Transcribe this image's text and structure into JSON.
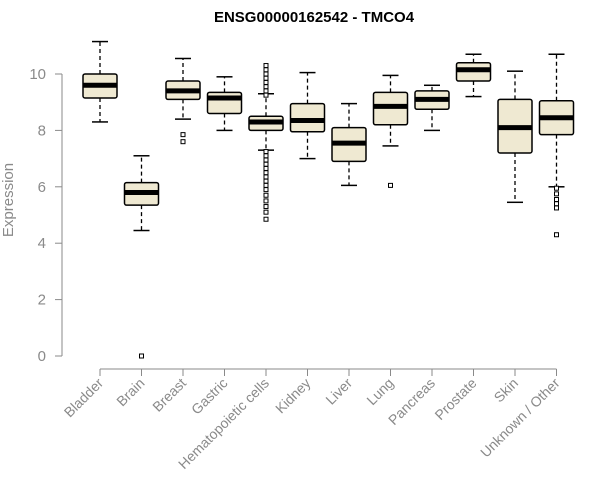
{
  "chart_data": {
    "type": "boxplot",
    "title": "ENSG00000162542 - TMCO4",
    "xlabel": "",
    "ylabel": "Expression",
    "ylim": [
      0,
      11
    ],
    "yticks": [
      0,
      2,
      4,
      6,
      8,
      10
    ],
    "grid": false,
    "box_fill": "#efe9d2",
    "box_stroke": "#000000",
    "categories": [
      "Bladder",
      "Brain",
      "Breast",
      "Gastric",
      "Hematopoietic cells",
      "Kidney",
      "Liver",
      "Lung",
      "Pancreas",
      "Prostate",
      "Skin",
      "Unknown / Other"
    ],
    "boxes": [
      {
        "category": "Bladder",
        "whisker_low": 8.3,
        "q1": 9.15,
        "median": 9.6,
        "q3": 10.0,
        "whisker_high": 11.15,
        "outliers": []
      },
      {
        "category": "Brain",
        "whisker_low": 4.45,
        "q1": 5.35,
        "median": 5.8,
        "q3": 6.15,
        "whisker_high": 7.1,
        "outliers": [
          0.0
        ]
      },
      {
        "category": "Breast",
        "whisker_low": 8.4,
        "q1": 9.1,
        "median": 9.4,
        "q3": 9.75,
        "whisker_high": 10.55,
        "outliers": [
          7.85,
          7.6
        ]
      },
      {
        "category": "Gastric",
        "whisker_low": 8.0,
        "q1": 8.6,
        "median": 9.15,
        "q3": 9.35,
        "whisker_high": 9.9,
        "outliers": []
      },
      {
        "category": "Hematopoietic cells",
        "whisker_low": 7.3,
        "q1": 8.0,
        "median": 8.3,
        "q3": 8.5,
        "whisker_high": 9.3,
        "outliers": [
          10.3,
          10.15,
          10.0,
          9.85,
          9.7,
          9.55,
          9.4,
          9.25,
          7.25,
          7.1,
          6.95,
          6.8,
          6.65,
          6.5,
          6.35,
          6.2,
          6.05,
          5.9,
          5.7,
          5.5,
          5.3,
          5.1,
          4.85
        ]
      },
      {
        "category": "Kidney",
        "whisker_low": 7.0,
        "q1": 7.95,
        "median": 8.35,
        "q3": 8.95,
        "whisker_high": 10.05,
        "outliers": []
      },
      {
        "category": "Liver",
        "whisker_low": 6.05,
        "q1": 6.9,
        "median": 7.55,
        "q3": 8.1,
        "whisker_high": 8.95,
        "outliers": []
      },
      {
        "category": "Lung",
        "whisker_low": 7.45,
        "q1": 8.2,
        "median": 8.85,
        "q3": 9.35,
        "whisker_high": 9.95,
        "outliers": [
          6.05
        ]
      },
      {
        "category": "Pancreas",
        "whisker_low": 8.0,
        "q1": 8.75,
        "median": 9.1,
        "q3": 9.4,
        "whisker_high": 9.6,
        "outliers": []
      },
      {
        "category": "Prostate",
        "whisker_low": 9.2,
        "q1": 9.75,
        "median": 10.15,
        "q3": 10.4,
        "whisker_high": 10.7,
        "outliers": []
      },
      {
        "category": "Skin",
        "whisker_low": 5.45,
        "q1": 7.2,
        "median": 8.1,
        "q3": 9.1,
        "whisker_high": 10.1,
        "outliers": []
      },
      {
        "category": "Unknown / Other",
        "whisker_low": 6.0,
        "q1": 7.85,
        "median": 8.45,
        "q3": 9.05,
        "whisker_high": 10.7,
        "outliers": [
          5.95,
          5.75,
          5.55,
          5.4,
          5.25,
          4.3
        ]
      }
    ]
  }
}
